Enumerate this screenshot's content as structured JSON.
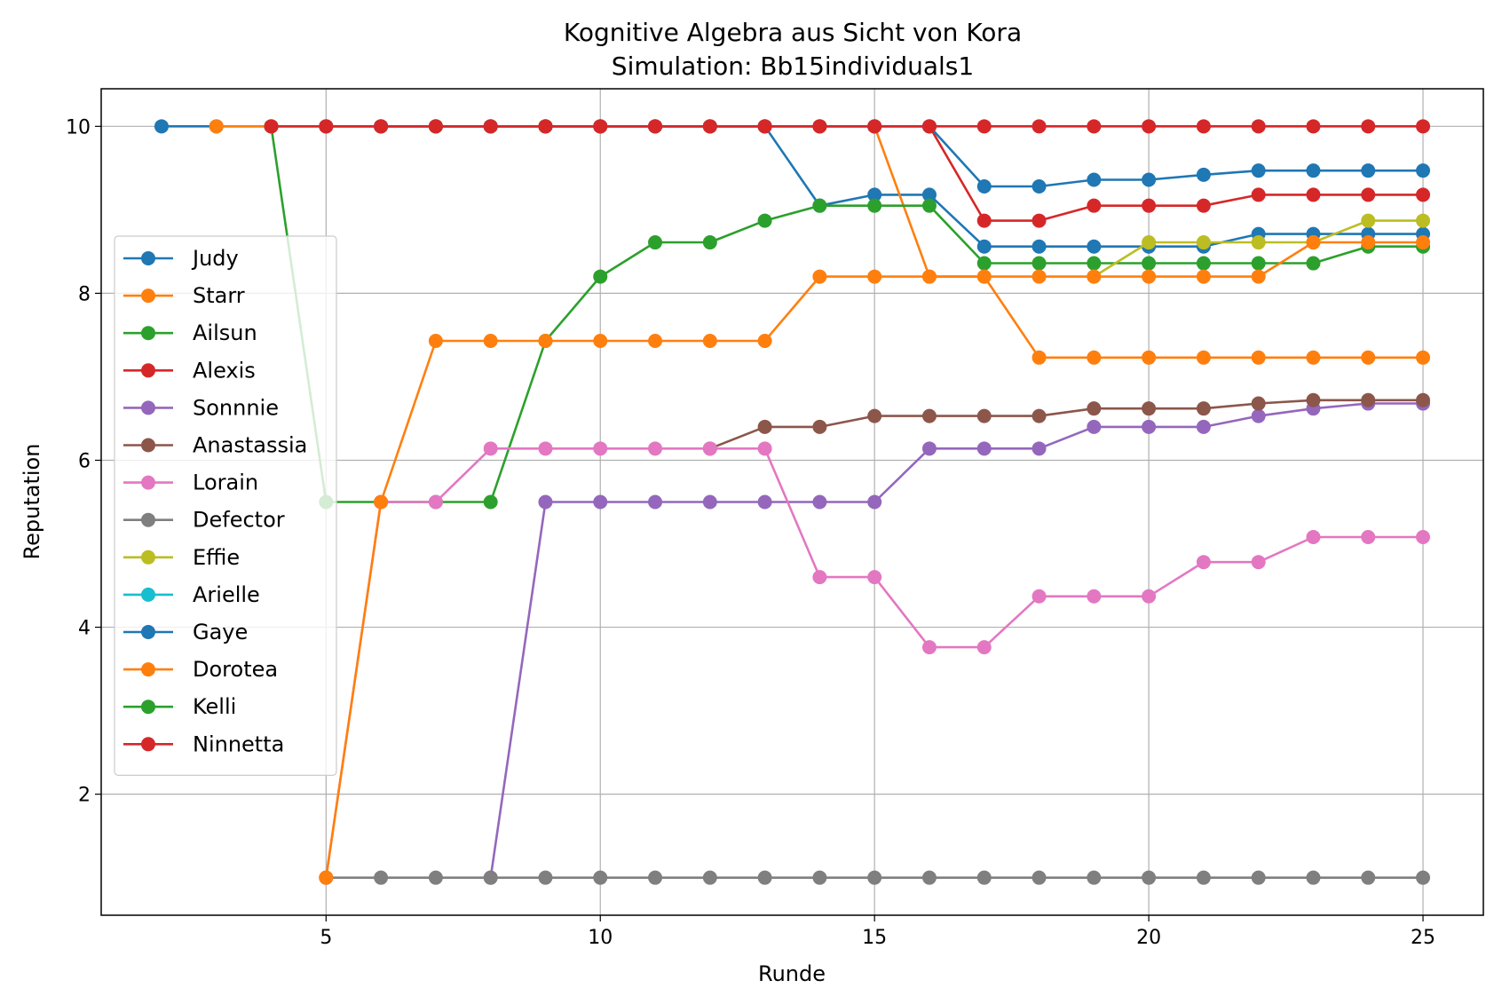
{
  "chart_data": {
    "type": "line",
    "title": "Kognitive Algebra aus Sicht von Kora",
    "subtitle": "Simulation: Bb15individuals1",
    "xlabel": "Runde",
    "ylabel": "Reputation",
    "xlim": [
      0.9,
      26.1
    ],
    "ylim": [
      0.55,
      10.45
    ],
    "xticks": [
      5,
      10,
      15,
      20,
      25
    ],
    "yticks": [
      2,
      4,
      6,
      8,
      10
    ],
    "grid": true,
    "legend_position": "center-left",
    "series": [
      {
        "name": "Judy",
        "color": "#1f77b4",
        "x": [
          2,
          3,
          4,
          5,
          6,
          7,
          8,
          9,
          10,
          11,
          12,
          13,
          14,
          15,
          16,
          17,
          18,
          19,
          20,
          21,
          22,
          23,
          24,
          25
        ],
        "y": [
          10,
          10,
          10,
          10,
          10,
          10,
          10,
          10,
          10,
          10,
          10,
          10,
          9.05,
          9.18,
          9.18,
          8.56,
          8.56,
          8.56,
          8.56,
          8.56,
          8.71,
          8.71,
          8.71,
          8.71
        ]
      },
      {
        "name": "Starr",
        "color": "#ff7f0e",
        "x": [
          3,
          4,
          5,
          6,
          7,
          8,
          9,
          10,
          11,
          12,
          13,
          14,
          15,
          16,
          17,
          18,
          19,
          20,
          21,
          22,
          23,
          24,
          25
        ],
        "y": [
          10,
          10,
          10,
          10,
          10,
          10,
          10,
          10,
          10,
          10,
          10,
          10,
          10,
          8.2,
          8.2,
          7.23,
          7.23,
          7.23,
          7.23,
          7.23,
          7.23,
          7.23,
          7.23
        ]
      },
      {
        "name": "Ailsun",
        "color": "#2ca02c",
        "x": [
          4,
          5,
          6,
          7,
          8,
          9,
          10,
          11,
          12,
          13,
          14,
          15,
          16,
          17,
          18,
          19,
          20,
          21,
          22,
          23,
          24,
          25
        ],
        "y": [
          10,
          5.5,
          5.5,
          5.5,
          5.5,
          7.43,
          8.2,
          8.61,
          8.61,
          8.87,
          9.05,
          9.05,
          9.05,
          8.36,
          8.36,
          8.36,
          8.36,
          8.36,
          8.36,
          8.36,
          8.56,
          8.56
        ]
      },
      {
        "name": "Alexis",
        "color": "#d62728",
        "x": [
          4,
          5,
          6,
          7,
          8,
          9,
          10,
          11,
          12,
          13,
          14,
          15,
          16,
          17,
          18,
          19,
          20,
          21,
          22,
          23,
          24,
          25
        ],
        "y": [
          10,
          10,
          10,
          10,
          10,
          10,
          10,
          10,
          10,
          10,
          10,
          10,
          10,
          8.87,
          8.87,
          9.05,
          9.05,
          9.05,
          9.18,
          9.18,
          9.18,
          9.18
        ]
      },
      {
        "name": "Sonnnie",
        "color": "#9467bd",
        "x": [
          8,
          9,
          10,
          11,
          12,
          13,
          14,
          15,
          16,
          17,
          18,
          19,
          20,
          21,
          22,
          23,
          24,
          25
        ],
        "y": [
          1,
          5.5,
          5.5,
          5.5,
          5.5,
          5.5,
          5.5,
          5.5,
          6.14,
          6.14,
          6.14,
          6.4,
          6.4,
          6.4,
          6.53,
          6.62,
          6.68,
          6.68
        ]
      },
      {
        "name": "Anastassia",
        "color": "#8c564b",
        "x": [
          12,
          13,
          14,
          15,
          16,
          17,
          18,
          19,
          20,
          21,
          22,
          23,
          24,
          25
        ],
        "y": [
          6.14,
          6.4,
          6.4,
          6.53,
          6.53,
          6.53,
          6.53,
          6.62,
          6.62,
          6.62,
          6.68,
          6.72,
          6.72,
          6.72
        ]
      },
      {
        "name": "Lorain",
        "color": "#e377c2",
        "x": [
          5,
          6,
          7,
          8,
          9,
          10,
          11,
          12,
          13,
          14,
          15,
          16,
          17,
          18,
          19,
          20,
          21,
          22,
          23,
          24,
          25
        ],
        "y": [
          1,
          5.5,
          5.5,
          6.14,
          6.14,
          6.14,
          6.14,
          6.14,
          6.14,
          4.6,
          4.6,
          3.76,
          3.76,
          4.37,
          4.37,
          4.37,
          4.78,
          4.78,
          5.08,
          5.08,
          5.08
        ]
      },
      {
        "name": "Defector",
        "color": "#7f7f7f",
        "x": [
          5,
          6,
          7,
          8,
          9,
          10,
          11,
          12,
          13,
          14,
          15,
          16,
          17,
          18,
          19,
          20,
          21,
          22,
          23,
          24,
          25
        ],
        "y": [
          1,
          1,
          1,
          1,
          1,
          1,
          1,
          1,
          1,
          1,
          1,
          1,
          1,
          1,
          1,
          1,
          1,
          1,
          1,
          1,
          1
        ]
      },
      {
        "name": "Effie",
        "color": "#bcbd22",
        "x": [
          19,
          20,
          21,
          22,
          23,
          24,
          25
        ],
        "y": [
          8.2,
          8.61,
          8.61,
          8.61,
          8.61,
          8.87,
          8.87
        ]
      },
      {
        "name": "Arielle",
        "color": "#17becf",
        "x": [],
        "y": []
      },
      {
        "name": "Gaye",
        "color": "#1f77b4",
        "x": [
          6,
          7,
          8,
          9,
          10,
          11,
          12,
          13,
          14,
          15,
          16,
          17,
          18,
          19,
          20,
          21,
          22,
          23,
          24,
          25
        ],
        "y": [
          10,
          10,
          10,
          10,
          10,
          10,
          10,
          10,
          10,
          10,
          10,
          9.28,
          9.28,
          9.36,
          9.36,
          9.42,
          9.47,
          9.47,
          9.47,
          9.47
        ]
      },
      {
        "name": "Dorotea",
        "color": "#ff7f0e",
        "x": [
          5,
          6,
          7,
          8,
          9,
          10,
          11,
          12,
          13,
          14,
          15,
          16,
          17,
          18,
          19,
          20,
          21,
          22,
          23,
          24,
          25
        ],
        "y": [
          1,
          5.5,
          7.43,
          7.43,
          7.43,
          7.43,
          7.43,
          7.43,
          7.43,
          8.2,
          8.2,
          8.2,
          8.2,
          8.2,
          8.2,
          8.2,
          8.2,
          8.2,
          8.61,
          8.61,
          8.61
        ]
      },
      {
        "name": "Kelli",
        "color": "#2ca02c",
        "x": [
          7,
          8,
          9
        ],
        "y": [
          10,
          10,
          10
        ]
      },
      {
        "name": "Ninnetta",
        "color": "#d62728",
        "x": [
          5,
          6,
          7,
          8,
          9,
          10,
          11,
          12,
          13,
          14,
          15,
          16,
          17,
          18,
          19,
          20,
          21,
          22,
          23,
          24,
          25
        ],
        "y": [
          10,
          10,
          10,
          10,
          10,
          10,
          10,
          10,
          10,
          10,
          10,
          10,
          10,
          10,
          10,
          10,
          10,
          10,
          10,
          10,
          10
        ]
      }
    ]
  }
}
